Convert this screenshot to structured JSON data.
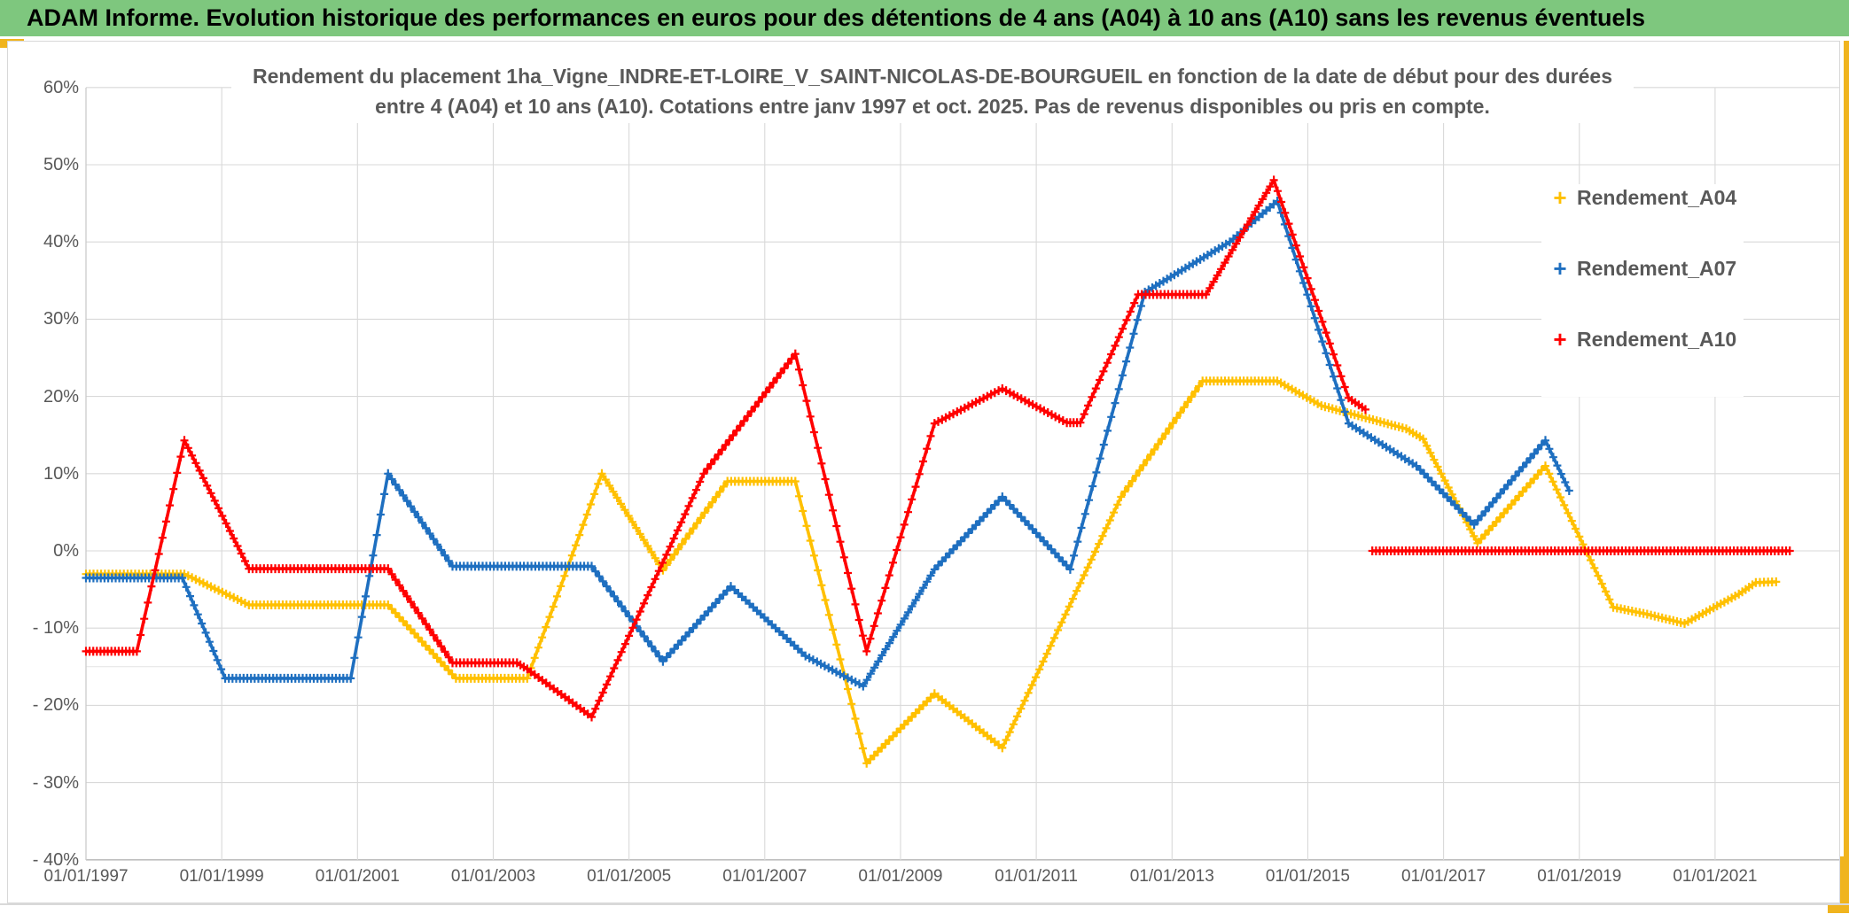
{
  "header": {
    "title": "ADAM Informe. Evolution historique des performances en euros pour des détentions de 4 ans (A04) à 10 ans (A10) sans les revenus éventuels"
  },
  "colors": {
    "header_bg": "#7EC77E",
    "gold_accent": "#F0B41E",
    "gridline": "#D9D9D9",
    "axis_bottom": "#BFBFBF",
    "text_gray": "#595959"
  },
  "chart_data": {
    "type": "line",
    "title_line1": "Rendement du placement 1ha_Vigne_INDRE-ET-LOIRE_V_SAINT-NICOLAS-DE-BOURGUEIL en fonction de la date de début pour des durées",
    "title_line2": "entre 4 (A04) et 10 ans (A10). Cotations entre janv 1997 et oct. 2025. Pas de revenus disponibles ou pris en compte.",
    "xlabel": "",
    "ylabel": "",
    "grid": "on",
    "legend_position": "right",
    "x_range_years": [
      1997.0,
      2022.9
    ],
    "ylim": [
      -40,
      60
    ],
    "y_tick_values": [
      60,
      50,
      40,
      30,
      20,
      10,
      0,
      -10,
      -20,
      -30,
      -40
    ],
    "y_tick_labels": [
      "60%",
      "50%",
      "40%",
      "30%",
      "20%",
      "10%",
      "0%",
      "- 10%",
      "- 20%",
      "- 30%",
      "- 40%"
    ],
    "extra_gridline_value": -15,
    "x_tick_years": [
      1997,
      1999,
      2001,
      2003,
      2005,
      2007,
      2009,
      2011,
      2013,
      2015,
      2017,
      2019,
      2021
    ],
    "x_tick_labels": [
      "01/01/1997",
      "01/01/1999",
      "01/01/2001",
      "01/01/2003",
      "01/01/2005",
      "01/01/2007",
      "01/01/2009",
      "01/01/2011",
      "01/01/2013",
      "01/01/2015",
      "01/01/2017",
      "01/01/2019",
      "01/01/2021"
    ],
    "series": [
      {
        "name": "Rendement_A04",
        "color": "#FFC000",
        "marker": "+",
        "segments": [
          [
            [
              1997.0,
              -3
            ],
            [
              1998.45,
              -3
            ],
            [
              1999.4,
              -7
            ],
            [
              2001.45,
              -7
            ],
            [
              2002.45,
              -16.5
            ],
            [
              2003.5,
              -16.5
            ],
            [
              2004.6,
              10
            ],
            [
              2005.5,
              -2.5
            ],
            [
              2006.45,
              9
            ],
            [
              2007.45,
              9
            ],
            [
              2008.5,
              -27.5
            ],
            [
              2009.5,
              -18.5
            ],
            [
              2010.5,
              -25.5
            ],
            [
              2012.25,
              7
            ],
            [
              2013.45,
              22
            ],
            [
              2014.55,
              22
            ],
            [
              2015.2,
              18.8
            ],
            [
              2016.45,
              15.8
            ],
            [
              2016.7,
              14.5
            ],
            [
              2017.5,
              1
            ],
            [
              2018.5,
              11
            ],
            [
              2019.5,
              -7.3
            ],
            [
              2020.0,
              -8.2
            ],
            [
              2020.55,
              -9.4
            ],
            [
              2021.35,
              -5.6
            ],
            [
              2021.6,
              -4.1
            ],
            [
              2021.9,
              -4
            ]
          ]
        ]
      },
      {
        "name": "Rendement_A07",
        "color": "#1E6FC0",
        "marker": "+",
        "segments": [
          [
            [
              1997.0,
              -3.5
            ],
            [
              1998.42,
              -3.5
            ],
            [
              1999.05,
              -16.5
            ],
            [
              2000.9,
              -16.5
            ],
            [
              2001.45,
              10
            ],
            [
              2002.4,
              -2
            ],
            [
              2004.45,
              -2
            ],
            [
              2005.5,
              -14.3
            ],
            [
              2006.5,
              -4.6
            ],
            [
              2007.6,
              -13.6
            ],
            [
              2008.45,
              -17.5
            ],
            [
              2009.5,
              -2.4
            ],
            [
              2010.5,
              7
            ],
            [
              2011.5,
              -2.4
            ],
            [
              2012.6,
              33.5
            ],
            [
              2013.85,
              40
            ],
            [
              2014.55,
              45.3
            ],
            [
              2015.6,
              16.5
            ],
            [
              2016.6,
              11
            ],
            [
              2017.45,
              3.4
            ],
            [
              2018.5,
              14.3
            ],
            [
              2018.85,
              7.8
            ]
          ]
        ]
      },
      {
        "name": "Rendement_A10",
        "color": "#FF0000",
        "marker": "+",
        "segments": [
          [
            [
              1997.0,
              -13
            ],
            [
              1997.75,
              -13
            ],
            [
              1998.45,
              14.3
            ],
            [
              1999.4,
              -2.3
            ],
            [
              2001.45,
              -2.3
            ],
            [
              2002.4,
              -14.5
            ],
            [
              2003.35,
              -14.5
            ],
            [
              2003.5,
              -15.3
            ],
            [
              2004.45,
              -21.5
            ],
            [
              2006.1,
              10
            ],
            [
              2007.45,
              25.5
            ],
            [
              2008.5,
              -13
            ],
            [
              2009.5,
              16.5
            ],
            [
              2010.5,
              21
            ],
            [
              2011.45,
              16.6
            ],
            [
              2011.65,
              16.6
            ],
            [
              2012.5,
              33.2
            ],
            [
              2013.5,
              33.2
            ],
            [
              2014.5,
              48
            ],
            [
              2015.6,
              19.8
            ],
            [
              2015.85,
              18.3
            ]
          ],
          [
            [
              2015.95,
              0
            ],
            [
              2022.1,
              0
            ]
          ]
        ]
      }
    ]
  }
}
